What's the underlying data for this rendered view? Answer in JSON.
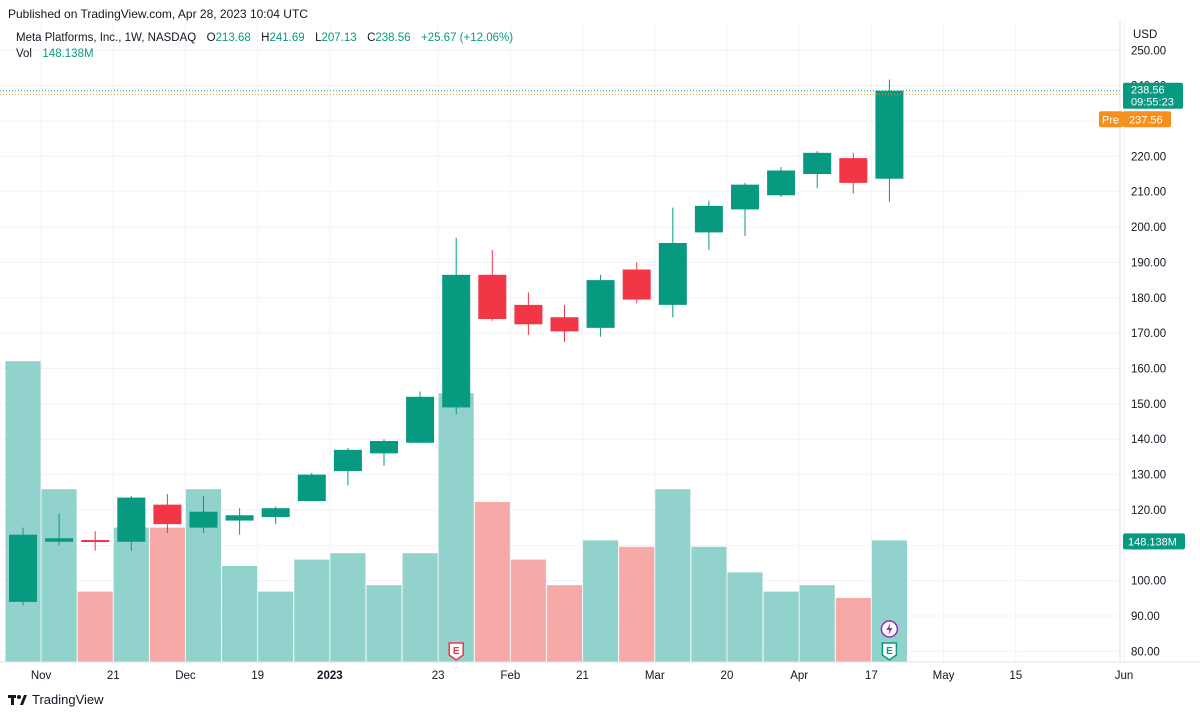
{
  "header": {
    "published": "Published on TradingView.com, Apr 28, 2023 10:04 UTC"
  },
  "legend": {
    "title": "Meta Platforms, Inc., 1W, NASDAQ",
    "o_label": "O",
    "o_value": "213.68",
    "h_label": "H",
    "h_value": "241.69",
    "l_label": "L",
    "l_value": "207.13",
    "c_label": "C",
    "c_value": "238.56",
    "change": "+25.67 (+12.06%)",
    "vol_label": "Vol",
    "vol_value": "148.138M"
  },
  "price_tags": {
    "last_price": "238.56",
    "countdown": "09:55:23",
    "pre_label": "Pre",
    "pre_price": "237.56",
    "volume": "148.138M"
  },
  "footer": {
    "brand": "TradingView"
  },
  "colors": {
    "up": "#089981",
    "down": "#f23645",
    "vol_up": "#92d2cc",
    "vol_down": "#f7a9a7",
    "pre": "#f68f1d",
    "grid": "#f0f3fa",
    "earnings": "#f23645",
    "dividend": "#089981",
    "split": "#9c27b0"
  },
  "chart_data": {
    "type": "candlestick",
    "title": "Meta Platforms, Inc., 1W, NASDAQ",
    "currency": "USD",
    "ylim": [
      77,
      258
    ],
    "yticks": [
      "250.00",
      "240.00",
      "230.00",
      "220.00",
      "210.00",
      "200.00",
      "190.00",
      "180.00",
      "170.00",
      "160.00",
      "150.00",
      "140.00",
      "130.00",
      "120.00",
      "110.00",
      "100.00",
      "90.00",
      "80.00"
    ],
    "ytick_values": [
      250,
      240,
      230,
      220,
      210,
      200,
      190,
      180,
      170,
      160,
      150,
      140,
      130,
      120,
      110,
      100,
      90,
      80
    ],
    "xticks": [
      {
        "label": "Nov",
        "index": 0.5,
        "bold": false
      },
      {
        "label": "21",
        "index": 2.5,
        "bold": false
      },
      {
        "label": "Dec",
        "index": 4.5,
        "bold": false
      },
      {
        "label": "19",
        "index": 6.5,
        "bold": false
      },
      {
        "label": "2023",
        "index": 8.5,
        "bold": true
      },
      {
        "label": "23",
        "index": 11.5,
        "bold": false
      },
      {
        "label": "Feb",
        "index": 13.5,
        "bold": false
      },
      {
        "label": "21",
        "index": 15.5,
        "bold": false
      },
      {
        "label": "Mar",
        "index": 17.5,
        "bold": false
      },
      {
        "label": "20",
        "index": 19.5,
        "bold": false
      },
      {
        "label": "Apr",
        "index": 21.5,
        "bold": false
      },
      {
        "label": "17",
        "index": 23.5,
        "bold": false
      },
      {
        "label": "May",
        "index": 25.5,
        "bold": false
      },
      {
        "label": "15",
        "index": 27.5,
        "bold": false
      },
      {
        "label": "Jun",
        "index": 30.5,
        "bold": false
      }
    ],
    "candles": [
      {
        "o": 94,
        "h": 115,
        "l": 93,
        "c": 113
      },
      {
        "o": 111,
        "h": 119,
        "l": 110,
        "c": 112
      },
      {
        "o": 111.5,
        "h": 114,
        "l": 108.5,
        "c": 111
      },
      {
        "o": 111,
        "h": 124,
        "l": 108.5,
        "c": 123.5
      },
      {
        "o": 121.5,
        "h": 124.5,
        "l": 113.5,
        "c": 116
      },
      {
        "o": 115,
        "h": 124,
        "l": 113.5,
        "c": 119.5
      },
      {
        "o": 117,
        "h": 120.5,
        "l": 113,
        "c": 118.5
      },
      {
        "o": 118,
        "h": 121,
        "l": 116,
        "c": 120.5
      },
      {
        "o": 122.5,
        "h": 130.5,
        "l": 122.5,
        "c": 130
      },
      {
        "o": 131,
        "h": 137.5,
        "l": 127,
        "c": 137
      },
      {
        "o": 136,
        "h": 140,
        "l": 132.5,
        "c": 139.5
      },
      {
        "o": 139,
        "h": 153.5,
        "l": 139,
        "c": 152
      },
      {
        "o": 149,
        "h": 197,
        "l": 147,
        "c": 186.5
      },
      {
        "o": 186.5,
        "h": 193.5,
        "l": 173.5,
        "c": 174
      },
      {
        "o": 178,
        "h": 181.5,
        "l": 169.5,
        "c": 172.5
      },
      {
        "o": 174.5,
        "h": 178,
        "l": 167.5,
        "c": 170.5
      },
      {
        "o": 171.5,
        "h": 186.5,
        "l": 169,
        "c": 185
      },
      {
        "o": 188,
        "h": 190,
        "l": 178.5,
        "c": 179.5
      },
      {
        "o": 178,
        "h": 205.5,
        "l": 174.5,
        "c": 195.5
      },
      {
        "o": 198.5,
        "h": 207.5,
        "l": 193.5,
        "c": 206
      },
      {
        "o": 205,
        "h": 212.5,
        "l": 197.5,
        "c": 212
      },
      {
        "o": 209,
        "h": 217,
        "l": 208.5,
        "c": 216
      },
      {
        "o": 215,
        "h": 221.5,
        "l": 211,
        "c": 221
      },
      {
        "o": 219.5,
        "h": 221,
        "l": 209.5,
        "c": 212.5
      },
      {
        "o": 213.68,
        "h": 241.69,
        "l": 207.13,
        "c": 238.56
      }
    ],
    "volume_fraction": [
      0.47,
      0.27,
      0.11,
      0.21,
      0.21,
      0.27,
      0.15,
      0.11,
      0.16,
      0.17,
      0.12,
      0.17,
      0.42,
      0.25,
      0.16,
      0.12,
      0.19,
      0.18,
      0.27,
      0.18,
      0.14,
      0.11,
      0.12,
      0.1,
      0.19
    ],
    "last_price": 238.56,
    "pre_price": 237.56,
    "event_markers": [
      {
        "type": "earnings",
        "letter": "E",
        "index": 12
      },
      {
        "type": "dividend",
        "letter": "E",
        "index": 24
      },
      {
        "type": "split",
        "letter": "⚡",
        "index": 24
      }
    ]
  }
}
